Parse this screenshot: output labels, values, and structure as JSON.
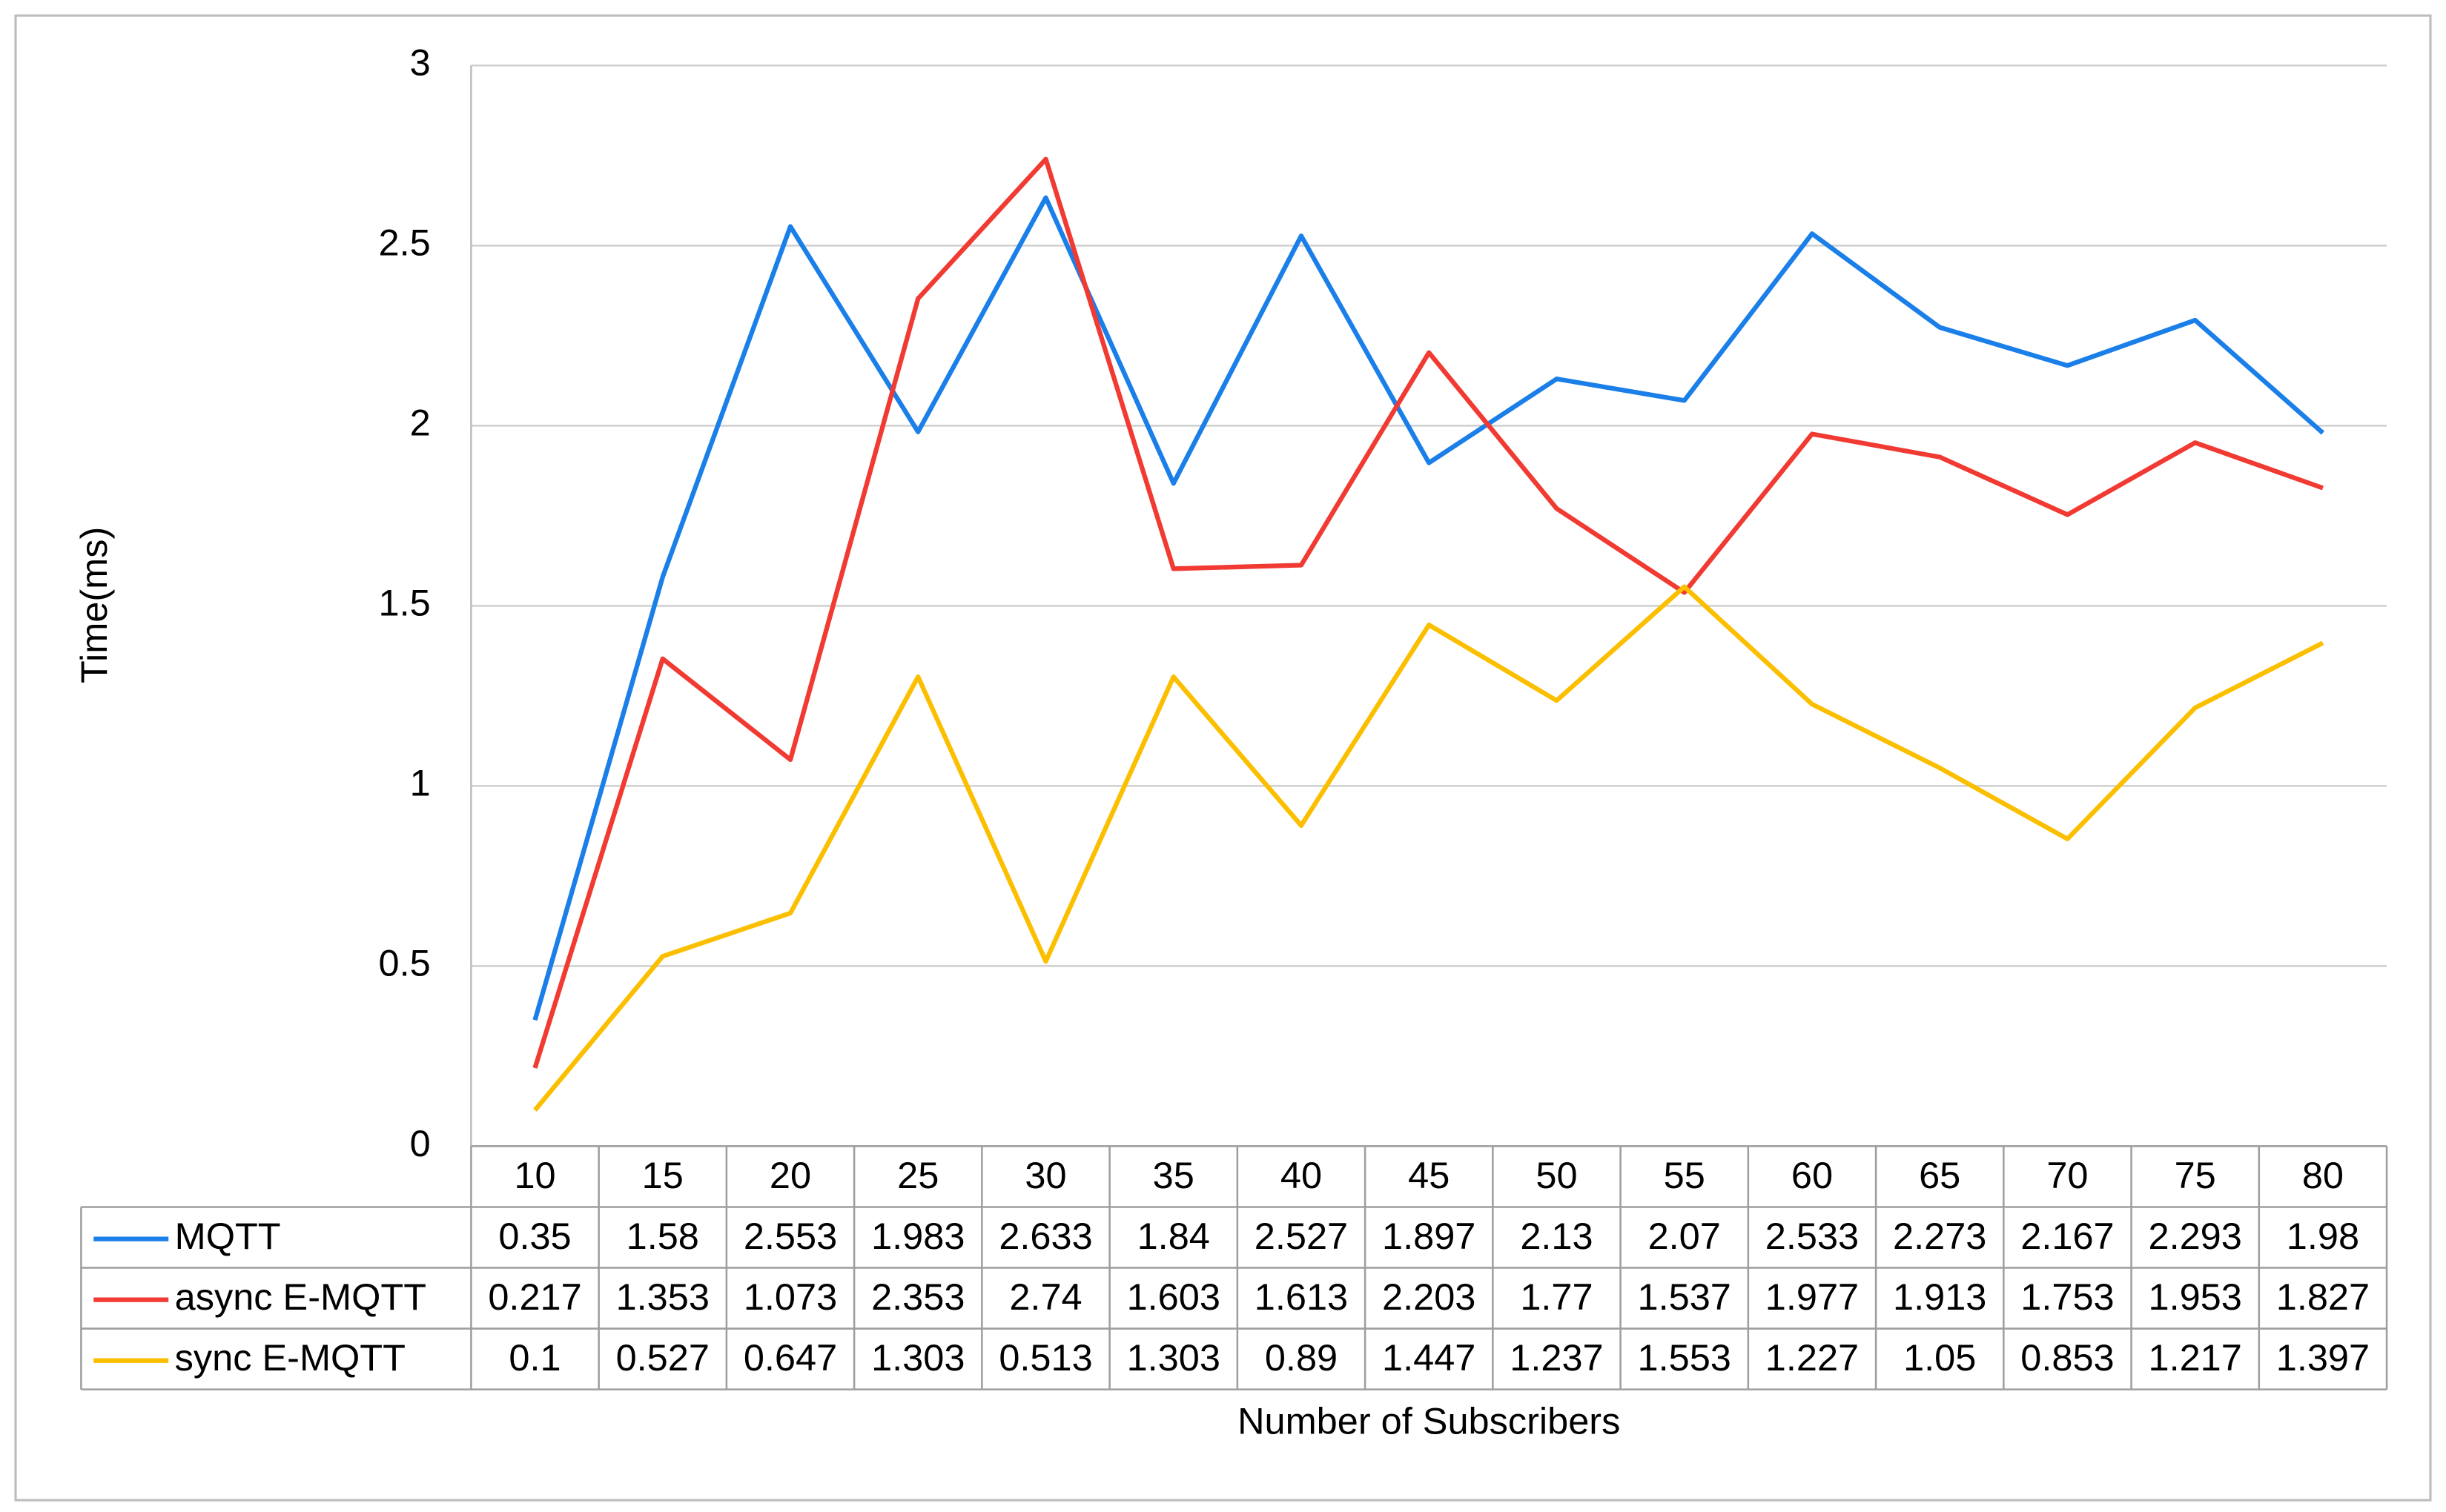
{
  "chart_data": {
    "type": "line",
    "y_label": "Time(ms)",
    "x_label": "Number of Subscribers",
    "categories": [
      10,
      15,
      20,
      25,
      30,
      35,
      40,
      45,
      50,
      55,
      60,
      65,
      70,
      75,
      80
    ],
    "series": [
      {
        "name": "MQTT",
        "color": "#1a7fe8",
        "values": [
          0.35,
          1.58,
          2.553,
          1.983,
          2.633,
          1.84,
          2.527,
          1.897,
          2.13,
          2.07,
          2.533,
          2.273,
          2.167,
          2.293,
          1.98
        ]
      },
      {
        "name": "async E-MQTT",
        "color": "#f03a32",
        "values": [
          0.217,
          1.353,
          1.073,
          2.353,
          2.74,
          1.603,
          1.613,
          2.203,
          1.77,
          1.537,
          1.977,
          1.913,
          1.753,
          1.953,
          1.827
        ]
      },
      {
        "name": "sync E-MQTT",
        "color": "#fbbf00",
        "values": [
          0.1,
          0.527,
          0.647,
          1.303,
          0.513,
          1.303,
          0.89,
          1.447,
          1.237,
          1.553,
          1.227,
          1.05,
          0.853,
          1.217,
          1.397
        ]
      }
    ],
    "ylim": [
      0,
      3
    ],
    "yticks": [
      0,
      0.5,
      1,
      1.5,
      2,
      2.5,
      3
    ],
    "grid": true
  }
}
